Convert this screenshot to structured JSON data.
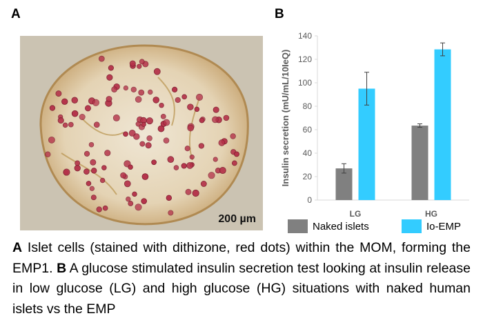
{
  "panels": {
    "a_label": "A",
    "b_label": "B"
  },
  "micrograph": {
    "scale_bar_label": "200 µm",
    "description_icon": "islet-micrograph"
  },
  "chart_data": {
    "type": "bar",
    "title": "",
    "xlabel": "",
    "ylabel": "Insulin secretion (mU/mL/10IeQ)",
    "ylim": [
      0,
      140
    ],
    "yticks": [
      0,
      20,
      40,
      60,
      80,
      100,
      120,
      140
    ],
    "categories": [
      "LG",
      "HG"
    ],
    "series": [
      {
        "name": "Naked islets",
        "color": "#808080",
        "values": [
          27,
          63.5
        ],
        "errors": [
          4,
          1.5
        ]
      },
      {
        "name": "Io-EMP",
        "color": "#33ccff",
        "values": [
          95,
          128.5
        ],
        "errors": [
          14,
          5.5
        ]
      }
    ],
    "legend": "bottom"
  },
  "caption": {
    "a_tag": "A",
    "a_text": " Islet cells (stained with dithizone, red dots) within the MOM, forming the EMP1. ",
    "b_tag": "B",
    "b_text": " A glucose stimulated insulin secretion test looking at insulin release in low glucose (LG) and high glucose (HG) situations with naked human islets vs the EMP"
  }
}
